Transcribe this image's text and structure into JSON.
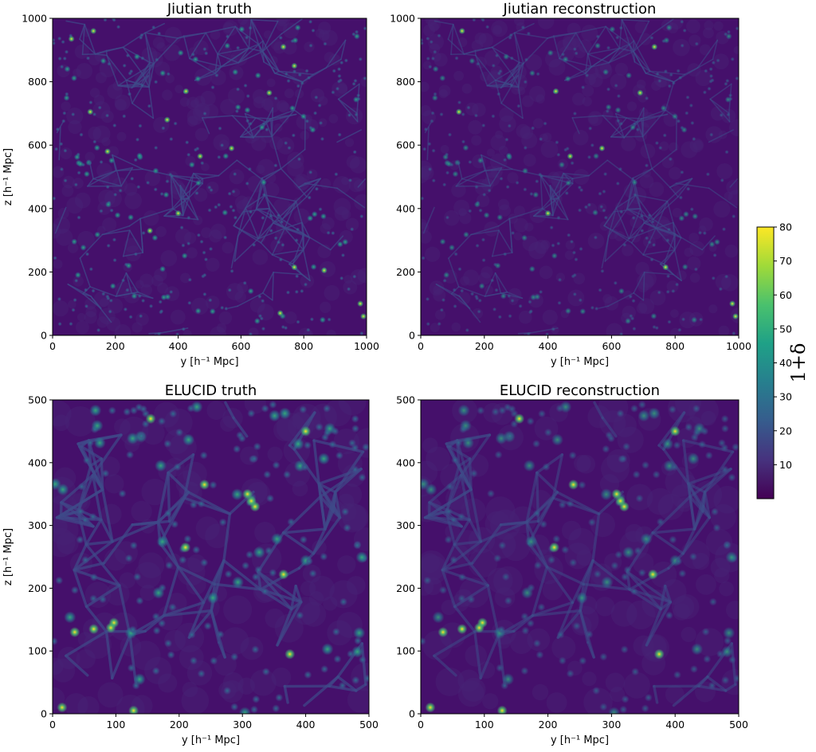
{
  "chart_data": [
    {
      "type": "heatmap",
      "title": "Jiutian truth",
      "xlabel": "y [h⁻¹ Mpc]",
      "ylabel": "z [h⁻¹ Mpc]",
      "xlim": [
        0,
        1000
      ],
      "ylim": [
        0,
        1000
      ],
      "xticks": [
        "0",
        "200",
        "400",
        "600",
        "800",
        "1000"
      ],
      "yticks": [
        "0",
        "200",
        "400",
        "600",
        "800",
        "1000"
      ],
      "peaks": [
        [
          130,
          960
        ],
        [
          60,
          935
        ],
        [
          735,
          910
        ],
        [
          770,
          850
        ],
        [
          425,
          770
        ],
        [
          690,
          765
        ],
        [
          365,
          680
        ],
        [
          120,
          705
        ],
        [
          470,
          565
        ],
        [
          570,
          590
        ],
        [
          175,
          580
        ],
        [
          770,
          215
        ],
        [
          865,
          205
        ],
        [
          980,
          100
        ],
        [
          990,
          60
        ],
        [
          725,
          70
        ],
        [
          400,
          385
        ],
        [
          310,
          330
        ]
      ]
    },
    {
      "type": "heatmap",
      "title": "Jiutian reconstruction",
      "xlabel": "y [h⁻¹ Mpc]",
      "ylabel": "z [h⁻¹ Mpc]",
      "xlim": [
        0,
        1000
      ],
      "ylim": [
        0,
        1000
      ],
      "xticks": [
        "0",
        "200",
        "400",
        "600",
        "800",
        "1000"
      ],
      "yticks": [
        "0",
        "200",
        "400",
        "600",
        "800",
        "1000"
      ],
      "peaks": [
        [
          130,
          960
        ],
        [
          735,
          910
        ],
        [
          425,
          770
        ],
        [
          690,
          765
        ],
        [
          120,
          705
        ],
        [
          470,
          565
        ],
        [
          570,
          590
        ],
        [
          770,
          215
        ],
        [
          980,
          100
        ],
        [
          990,
          60
        ],
        [
          400,
          385
        ]
      ]
    },
    {
      "type": "heatmap",
      "title": "ELUCID truth",
      "xlabel": "y [h⁻¹ Mpc]",
      "ylabel": "z [h⁻¹ Mpc]",
      "xlim": [
        0,
        500
      ],
      "ylim": [
        0,
        500
      ],
      "xticks": [
        "0",
        "100",
        "200",
        "300",
        "400",
        "500"
      ],
      "yticks": [
        "0",
        "100",
        "200",
        "300",
        "400",
        "500"
      ],
      "peaks": [
        [
          308,
          350
        ],
        [
          314,
          339
        ],
        [
          320,
          330
        ],
        [
          365,
          222
        ],
        [
          97,
          145
        ],
        [
          92,
          137
        ],
        [
          128,
          5
        ],
        [
          210,
          265
        ],
        [
          240,
          365
        ],
        [
          155,
          470
        ],
        [
          400,
          450
        ],
        [
          375,
          95
        ],
        [
          35,
          130
        ],
        [
          65,
          135
        ],
        [
          15,
          10
        ]
      ]
    },
    {
      "type": "heatmap",
      "title": "ELUCID reconstruction",
      "xlabel": "y [h⁻¹ Mpc]",
      "ylabel": "z [h⁻¹ Mpc]",
      "xlim": [
        0,
        500
      ],
      "ylim": [
        0,
        500
      ],
      "xticks": [
        "0",
        "100",
        "200",
        "300",
        "400",
        "500"
      ],
      "yticks": [
        "0",
        "100",
        "200",
        "300",
        "400",
        "500"
      ],
      "peaks": [
        [
          308,
          350
        ],
        [
          314,
          339
        ],
        [
          320,
          330
        ],
        [
          365,
          222
        ],
        [
          97,
          145
        ],
        [
          92,
          137
        ],
        [
          128,
          5
        ],
        [
          210,
          265
        ],
        [
          240,
          365
        ],
        [
          155,
          470
        ],
        [
          400,
          450
        ],
        [
          375,
          95
        ],
        [
          35,
          130
        ],
        [
          65,
          135
        ],
        [
          15,
          10
        ]
      ]
    }
  ],
  "colorbar": {
    "label": "1+δ",
    "range": [
      0,
      80
    ],
    "ticks": [
      "10",
      "20",
      "30",
      "40",
      "50",
      "60",
      "70",
      "80"
    ],
    "colormap": "viridis",
    "colors": [
      "#440154",
      "#46327e",
      "#365c8d",
      "#277f8e",
      "#1fa187",
      "#4ac16d",
      "#a0da39",
      "#fde725"
    ]
  }
}
